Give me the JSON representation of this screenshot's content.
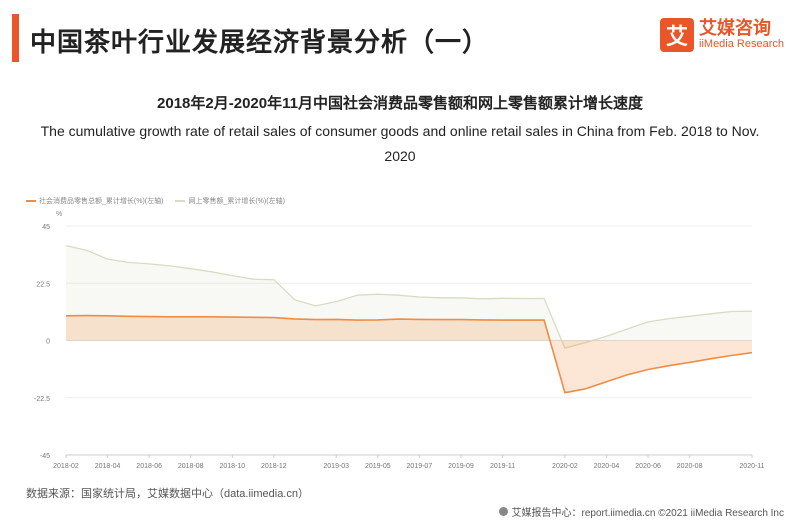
{
  "header": {
    "title": "中国茶叶行业发展经济背景分析（一）",
    "brand_logo_char": "艾",
    "brand_name": "艾媒咨询",
    "brand_sub": "iiMedia Research",
    "accent_color": "#e8562a"
  },
  "chart_title_cn": "2018年2月-2020年11月中国社会消费品零售额和网上零售额累计增长速度",
  "chart_title_en": "The cumulative growth rate of retail sales of consumer goods and online retail sales in China from Feb. 2018 to Nov. 2020",
  "chart_data": {
    "type": "area",
    "unit": "%",
    "x": [
      "2018-02",
      "2018-03",
      "2018-04",
      "2018-05",
      "2018-06",
      "2018-07",
      "2018-08",
      "2018-09",
      "2018-10",
      "2018-11",
      "2018-12",
      "2019-01",
      "2019-02",
      "2019-03",
      "2019-04",
      "2019-05",
      "2019-06",
      "2019-07",
      "2019-08",
      "2019-09",
      "2019-10",
      "2019-11",
      "2019-12",
      "2020-01",
      "2020-02",
      "2020-03",
      "2020-04",
      "2020-05",
      "2020-06",
      "2020-07",
      "2020-08",
      "2020-09",
      "2020-10",
      "2020-11"
    ],
    "xticks": [
      "2018-02",
      "2018-04",
      "2018-06",
      "2018-08",
      "2018-10",
      "2018-12",
      "2019-03",
      "2019-05",
      "2019-07",
      "2019-09",
      "2019-11",
      "2020-02",
      "2020-04",
      "2020-06",
      "2020-08",
      "2020-11"
    ],
    "yticks": [
      45,
      22.5,
      0,
      -22.5,
      -45
    ],
    "ylim": [
      -45,
      45
    ],
    "series": [
      {
        "name": "社会消费品零售总额_累计增长(%)(左轴)",
        "color": "#f08c44",
        "values": [
          9.7,
          9.8,
          9.7,
          9.5,
          9.4,
          9.3,
          9.3,
          9.3,
          9.2,
          9.1,
          9.0,
          8.5,
          8.2,
          8.3,
          8.0,
          8.1,
          8.4,
          8.3,
          8.2,
          8.2,
          8.1,
          8.0,
          8.0,
          8.0,
          -20.5,
          -19.0,
          -16.2,
          -13.5,
          -11.4,
          -9.9,
          -8.6,
          -7.2,
          -5.9,
          -4.8
        ]
      },
      {
        "name": "网上零售额_累计增长(%)(左轴)",
        "color": "#d6ddc2",
        "values": [
          37.3,
          35.4,
          32.0,
          30.7,
          30.1,
          29.3,
          28.2,
          27.0,
          25.5,
          24.1,
          23.9,
          16.0,
          13.6,
          15.3,
          17.8,
          18.2,
          17.8,
          17.1,
          16.8,
          16.8,
          16.4,
          16.6,
          16.5,
          16.5,
          -3.0,
          -0.8,
          1.7,
          4.5,
          7.3,
          8.6,
          9.5,
          10.5,
          11.4,
          11.5
        ]
      }
    ]
  },
  "source": "数据来源：国家统计局，艾媒数据中心（data.iimedia.cn）",
  "footer": "艾媒报告中心：report.iimedia.cn  ©2021  iiMedia Research  Inc"
}
